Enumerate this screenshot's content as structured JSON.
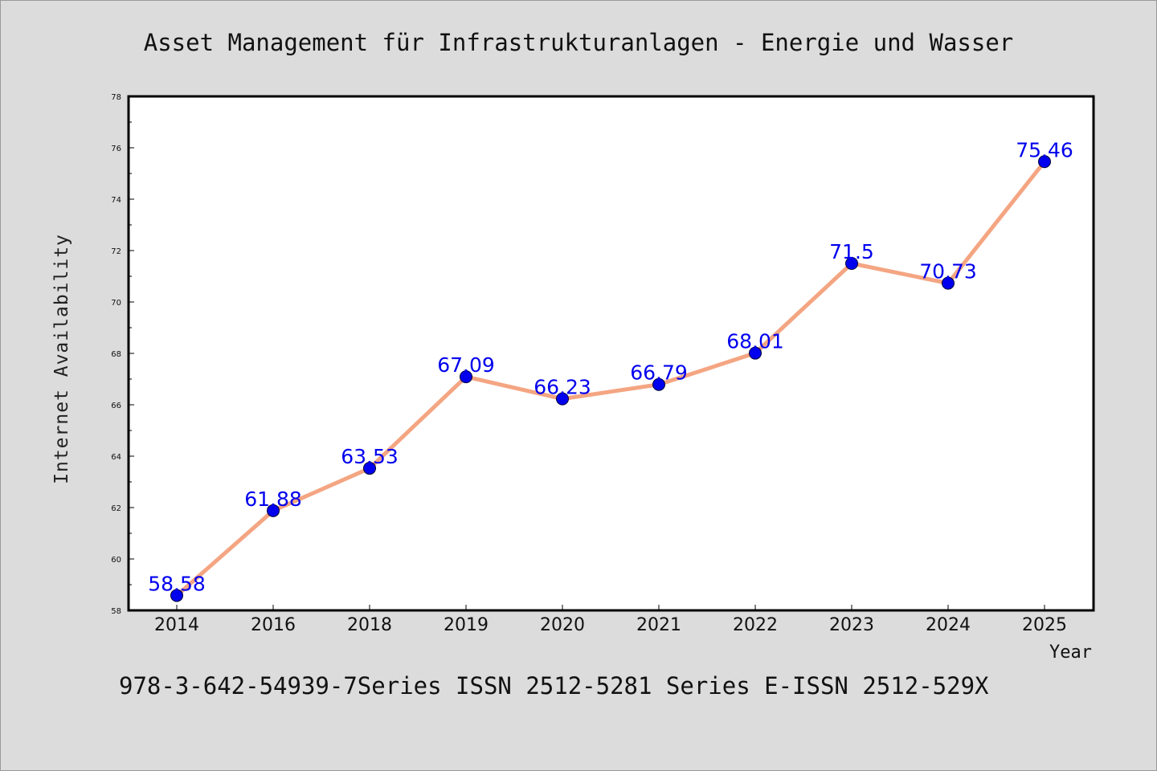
{
  "chart_data": {
    "type": "line",
    "title": "Asset Management für Infrastrukturanlagen - Energie und Wasser",
    "xlabel": "Year",
    "ylabel": "Internet Availability",
    "footer": "978-3-642-54939-7Series ISSN 2512-5281 Series E-ISSN 2512-529X",
    "categories": [
      "2014",
      "2016",
      "2018",
      "2019",
      "2020",
      "2021",
      "2022",
      "2023",
      "2024",
      "2025"
    ],
    "series": [
      {
        "values": [
          58.58,
          61.88,
          63.53,
          67.09,
          66.23,
          66.79,
          68.01,
          71.5,
          70.73,
          75.46
        ],
        "labels": [
          "58.58",
          "61.88",
          "63.53",
          "67.09",
          "66.23",
          "66.79",
          "68.01",
          "71.5",
          "70.73",
          "75.46"
        ],
        "line_color": "#f4a582",
        "marker_color": "#0000ee",
        "label_color": "#0000ee"
      }
    ],
    "ylim": [
      58,
      78
    ],
    "yticks": [
      58,
      60,
      62,
      64,
      66,
      68,
      70,
      72,
      74,
      76,
      78
    ],
    "grid": false,
    "legend": "none"
  }
}
